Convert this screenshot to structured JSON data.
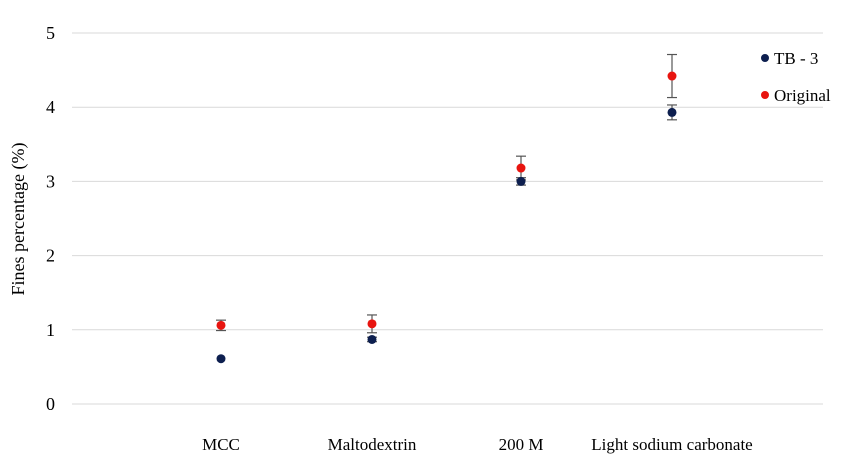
{
  "chart_data": {
    "type": "scatter",
    "ylabel": "Fines percentage (%)",
    "ylim": [
      0,
      5
    ],
    "yticks": [
      0,
      1,
      2,
      3,
      4,
      5
    ],
    "grid": true,
    "legend_position": "top-right",
    "categories": [
      "MCC",
      "Maltodextrin",
      "200 M",
      "Light sodium carbonate"
    ],
    "series": [
      {
        "name": "TB - 3",
        "color": "#0d1f4f",
        "values": [
          0.61,
          0.87,
          3.0,
          3.93
        ],
        "errors": [
          0.0,
          0.03,
          0.05,
          0.1
        ]
      },
      {
        "name": "Original",
        "color": "#e8140f",
        "values": [
          1.06,
          1.08,
          3.18,
          4.42
        ],
        "errors": [
          0.07,
          0.12,
          0.16,
          0.29
        ]
      }
    ]
  }
}
